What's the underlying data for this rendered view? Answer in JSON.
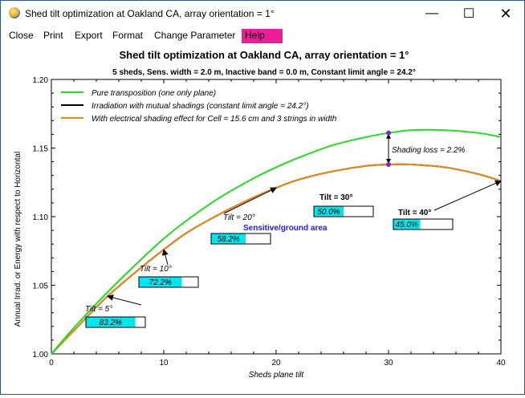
{
  "window": {
    "title": "Shed tilt optimization at Oakland CA, array orientation = 1°",
    "minimize_icon": "minimize-icon",
    "maximize_icon": "maximize-icon",
    "close_icon": "close-icon"
  },
  "menu": {
    "items": [
      "Close",
      "Print",
      "Export",
      "Format",
      "Change Parameter",
      "Help"
    ],
    "highlight_color": "#ee1c9a"
  },
  "chart_data": {
    "type": "line",
    "title": "Shed tilt optimization at Oakland CA, array orientation = 1°",
    "subtitle": "5 sheds,  Sens. width = 2.0 m, Inactive band = 0.0 m, Constant limit angle = 24.2°",
    "xlabel": "Sheds plane tilt",
    "ylabel": "Annual Irrad. or Energy with respect to Horizontal",
    "xlim": [
      0,
      40
    ],
    "ylim": [
      1.0,
      1.2
    ],
    "xticks": [
      "0",
      "10",
      "20",
      "30",
      "40"
    ],
    "yticks": [
      "1.00",
      "1.05",
      "1.10",
      "1.15",
      "1.20"
    ],
    "legend_position": "top-left",
    "series": [
      {
        "name": "Pure transposition (one only plane)",
        "color": "#22dd22",
        "x": [
          0,
          2,
          5,
          8,
          10,
          12,
          15,
          18,
          20,
          22,
          25,
          28,
          30,
          32,
          35,
          38,
          40
        ],
        "values": [
          1.0,
          1.019,
          1.045,
          1.069,
          1.084,
          1.097,
          1.114,
          1.128,
          1.136,
          1.143,
          1.152,
          1.158,
          1.161,
          1.163,
          1.163,
          1.161,
          1.158
        ]
      },
      {
        "name": "Irradiation with mutual shadings (constant limit angle = 24.2°)",
        "color": "#000000",
        "x": [
          0,
          2,
          5,
          8,
          10,
          12,
          15,
          18,
          20,
          22,
          25,
          28,
          30,
          32,
          35,
          38,
          40
        ],
        "values": [
          1.0,
          1.017,
          1.042,
          1.063,
          1.076,
          1.088,
          1.102,
          1.114,
          1.121,
          1.127,
          1.133,
          1.137,
          1.138,
          1.138,
          1.136,
          1.131,
          1.126
        ]
      },
      {
        "name": "With electrical shading effect for Cell = 15.6 cm and 3 strings in width",
        "color": "#ee8811",
        "x": [
          0,
          2,
          5,
          8,
          10,
          12,
          15,
          18,
          20,
          22,
          25,
          28,
          30,
          32,
          35,
          38,
          40
        ],
        "values": [
          1.0,
          1.017,
          1.042,
          1.063,
          1.076,
          1.088,
          1.102,
          1.114,
          1.121,
          1.127,
          1.133,
          1.137,
          1.138,
          1.138,
          1.136,
          1.131,
          1.126
        ]
      }
    ],
    "annotations": [
      {
        "label": "Tilt = 5°",
        "x": 5,
        "y": 1.047,
        "ratio_label": "83.2%",
        "ratio": 0.832
      },
      {
        "label": "Tilt = 10°",
        "x": 10,
        "y": 1.09,
        "ratio_label": "72.2%",
        "ratio": 0.722
      },
      {
        "label": "Tilt = 20°",
        "x": 20,
        "y": 1.148,
        "ratio_label": "58.2%",
        "ratio": 0.582
      },
      {
        "label": "Tilt = 30°",
        "x": 30,
        "y": 1.166,
        "ratio_label": "50.0%",
        "ratio": 0.5
      },
      {
        "label": "Tilt = 40°",
        "x": 40,
        "y": 1.158,
        "ratio_label": "45.0%",
        "ratio": 0.45
      }
    ],
    "sensitive_area_label": "Sensitive/ground area",
    "sensitive_area_color": "#2222cc",
    "shading_loss_label": "Shading loss = 2.2%",
    "marker_color": "#8822cc",
    "ratio_box_color": "#00e5ee"
  }
}
